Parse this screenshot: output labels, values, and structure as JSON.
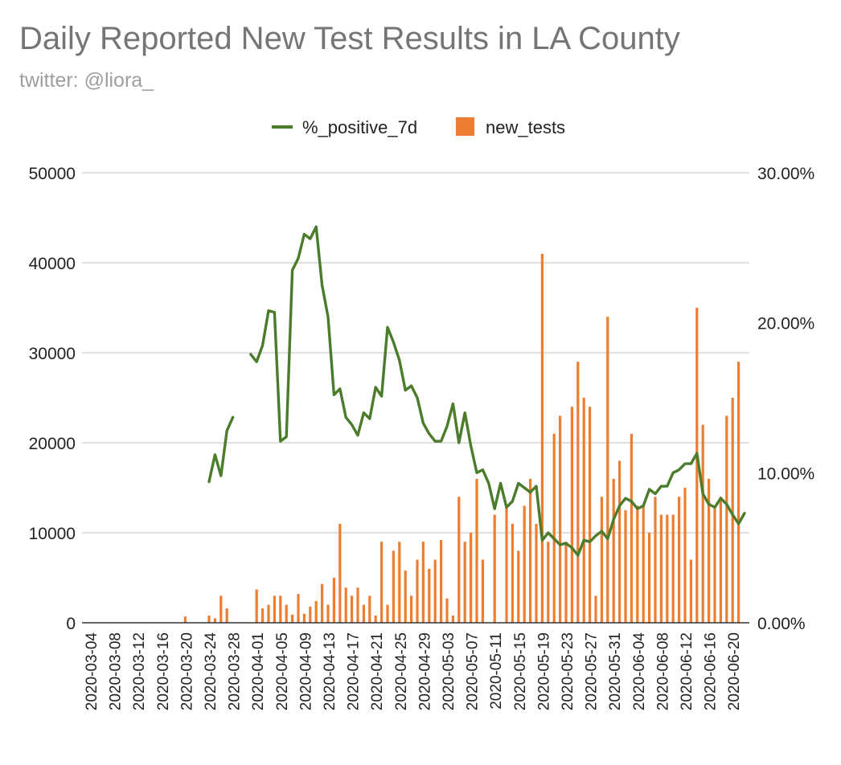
{
  "chart_data": {
    "type": "bar",
    "title": "Daily Reported New Test Results in LA County",
    "subtitle": "twitter: @liora_",
    "legend": {
      "position": "top",
      "entries": [
        {
          "name": "%_positive_7d",
          "type": "line",
          "color": "#4a7c2b"
        },
        {
          "name": "new_tests",
          "type": "bar",
          "color": "#ed7d31"
        }
      ]
    },
    "grid": true,
    "x_start_date": "2020-03-04",
    "x_end_date": "2020-06-21",
    "x_tick_labels": [
      "2020-03-04",
      "2020-03-08",
      "2020-03-12",
      "2020-03-16",
      "2020-03-20",
      "2020-03-24",
      "2020-03-28",
      "2020-04-01",
      "2020-04-05",
      "2020-04-09",
      "2020-04-13",
      "2020-04-17",
      "2020-04-21",
      "2020-04-25",
      "2020-04-29",
      "2020-05-03",
      "2020-05-07",
      "2020-05-11",
      "2020-05-15",
      "2020-05-19",
      "2020-05-23",
      "2020-05-27",
      "2020-05-31",
      "2020-06-04",
      "2020-06-08",
      "2020-06-12",
      "2020-06-16",
      "2020-06-20"
    ],
    "y_left": {
      "min": 0,
      "max": 50000,
      "ticks": [
        "0",
        "10000",
        "20000",
        "30000",
        "40000",
        "50000"
      ]
    },
    "y_right": {
      "min": 0,
      "max": 0.3,
      "ticks": [
        "0.00%",
        "10.00%",
        "20.00%",
        "30.00%"
      ]
    },
    "series": [
      {
        "name": "new_tests",
        "axis": "left",
        "color": "#ed7d31",
        "values": [
          0,
          0,
          0,
          0,
          0,
          0,
          0,
          0,
          0,
          0,
          0,
          0,
          0,
          0,
          0,
          0,
          700,
          0,
          0,
          0,
          800,
          500,
          3000,
          1600,
          0,
          0,
          0,
          0,
          3700,
          1600,
          2000,
          3000,
          3000,
          2000,
          900,
          3200,
          1000,
          1800,
          2400,
          4300,
          2000,
          5000,
          11000,
          3900,
          3000,
          3900,
          2000,
          3000,
          800,
          9000,
          2000,
          8000,
          9000,
          5800,
          3000,
          7000,
          9000,
          6000,
          7000,
          9200,
          2700,
          800,
          14000,
          9000,
          10000,
          16000,
          7000,
          0,
          12000,
          0,
          13000,
          11000,
          8000,
          13000,
          16000,
          11000,
          41000,
          9000,
          21000,
          23000,
          9000,
          24000,
          29000,
          25000,
          24000,
          3000,
          14000,
          34000,
          16000,
          18000,
          12500,
          21000,
          13000,
          13000,
          10000,
          14000,
          12000,
          12000,
          12000,
          14000,
          15000,
          7000,
          35000,
          22000,
          16000,
          13000,
          14000,
          23000,
          25000,
          29000
        ]
      },
      {
        "name": "%_positive_7d",
        "axis": "right",
        "color": "#4a7c2b",
        "values": [
          null,
          null,
          null,
          null,
          null,
          null,
          null,
          null,
          null,
          null,
          null,
          null,
          null,
          null,
          null,
          null,
          null,
          null,
          null,
          null,
          0.094,
          0.112,
          0.098,
          0.128,
          0.137,
          null,
          null,
          0.179,
          0.174,
          0.185,
          0.208,
          0.207,
          0.121,
          0.124,
          0.235,
          0.243,
          0.259,
          0.256,
          0.264,
          0.225,
          0.204,
          0.152,
          0.156,
          0.137,
          0.132,
          0.125,
          0.14,
          0.136,
          0.157,
          0.151,
          0.197,
          0.187,
          0.175,
          0.155,
          0.158,
          0.15,
          0.133,
          0.126,
          0.121,
          0.121,
          0.131,
          0.146,
          0.12,
          0.14,
          0.118,
          0.1,
          0.102,
          0.093,
          0.076,
          0.093,
          0.077,
          0.081,
          0.093,
          0.09,
          0.087,
          0.091,
          0.055,
          0.06,
          0.056,
          0.052,
          0.053,
          0.05,
          0.045,
          0.055,
          0.054,
          0.058,
          0.061,
          0.056,
          0.069,
          0.078,
          0.083,
          0.081,
          0.076,
          0.078,
          0.089,
          0.086,
          0.091,
          0.091,
          0.1,
          0.102,
          0.106,
          0.106,
          0.113,
          0.086,
          0.079,
          0.077,
          0.083,
          0.079,
          0.072,
          0.066,
          0.073
        ]
      }
    ]
  }
}
